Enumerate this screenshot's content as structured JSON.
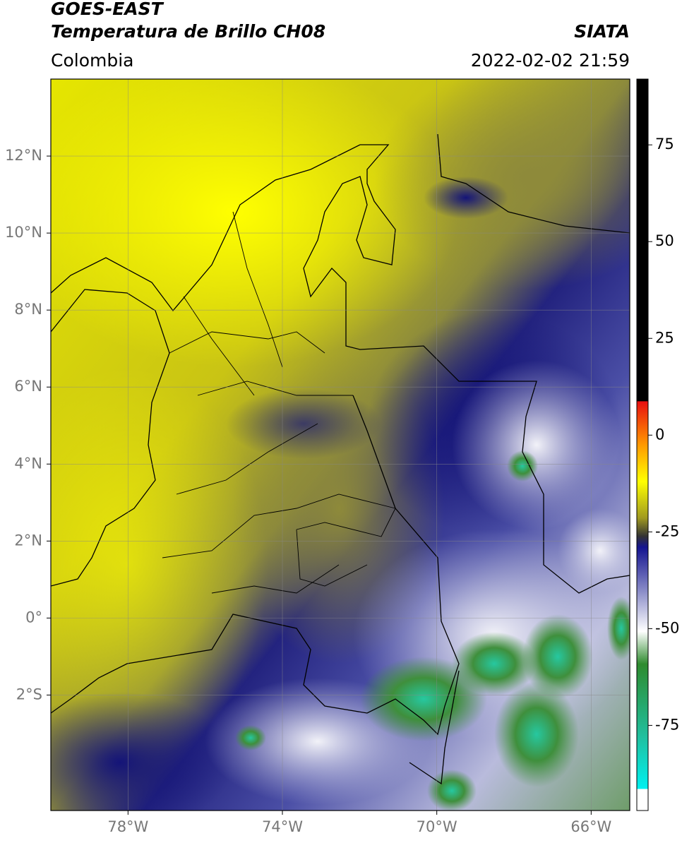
{
  "header": {
    "satellite": "GOES-EAST",
    "product": "Temperatura de Brillo CH08",
    "source": "SIATA",
    "region": "Colombia",
    "datetime": "2022-02-02 21:59"
  },
  "map": {
    "xlim": [
      -80,
      -65
    ],
    "ylim": [
      -5,
      14
    ],
    "xticks": [
      {
        "value": -78,
        "label": "78°W"
      },
      {
        "value": -74,
        "label": "74°W"
      },
      {
        "value": -70,
        "label": "70°W"
      },
      {
        "value": -66,
        "label": "66°W"
      }
    ],
    "yticks": [
      {
        "value": 12,
        "label": "12°N"
      },
      {
        "value": 10,
        "label": "10°N"
      },
      {
        "value": 8,
        "label": "8°N"
      },
      {
        "value": 6,
        "label": "6°N"
      },
      {
        "value": 4,
        "label": "4°N"
      },
      {
        "value": 2,
        "label": "2°N"
      },
      {
        "value": 0,
        "label": "0°"
      },
      {
        "value": -2,
        "label": "2°S"
      }
    ],
    "grid": true
  },
  "colorbar": {
    "lim": [
      -97,
      92
    ],
    "ticks": [
      75,
      50,
      25,
      0,
      -25,
      -50,
      -75
    ]
  }
}
